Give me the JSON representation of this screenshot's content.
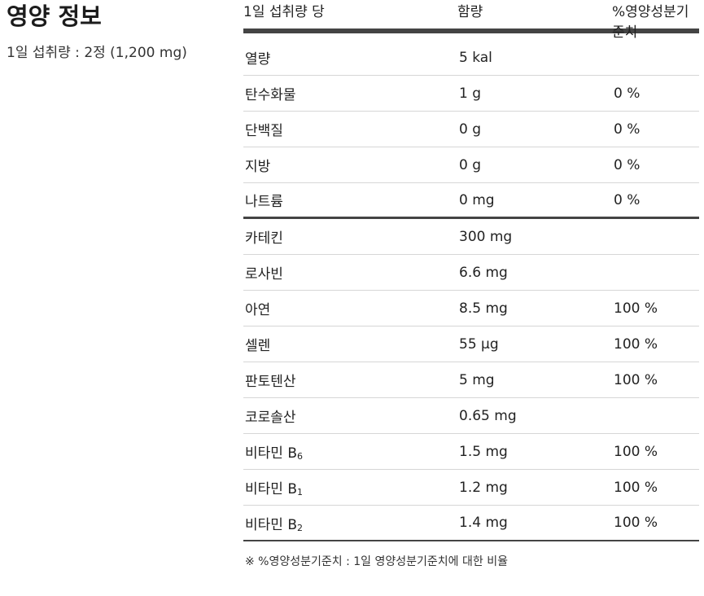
{
  "title": "영양 정보",
  "serving": "1일 섭취량 : 2정 (1,200 mg)",
  "header": {
    "col1": "1일 섭취량 당",
    "col2": "함량",
    "col3": "%영양성분기준치"
  },
  "group1": [
    {
      "name": "열량",
      "amount": "5 kal",
      "dv": ""
    },
    {
      "name": "탄수화물",
      "amount": "1 g",
      "dv": "0 %"
    },
    {
      "name": "단백질",
      "amount": "0 g",
      "dv": "0 %"
    },
    {
      "name": "지방",
      "amount": "0 g",
      "dv": "0 %"
    },
    {
      "name": "나트륨",
      "amount": "0 mg",
      "dv": "0 %"
    }
  ],
  "group2": [
    {
      "name": "카테킨",
      "amount": "300 mg",
      "dv": ""
    },
    {
      "name": "로사빈",
      "amount": "6.6 mg",
      "dv": ""
    },
    {
      "name": "아연",
      "amount": "8.5 mg",
      "dv": "100 %"
    },
    {
      "name": "셀렌",
      "amount": "55 μg",
      "dv": "100 %"
    },
    {
      "name": "판토텐산",
      "amount": "5 mg",
      "dv": "100 %"
    },
    {
      "name": "코로솔산",
      "amount": "0.65 mg",
      "dv": ""
    },
    {
      "name": "비타민 B",
      "sub": "6",
      "amount": "1.5 mg",
      "dv": "100 %"
    },
    {
      "name": "비타민 B",
      "sub": "1",
      "amount": "1.2 mg",
      "dv": "100 %"
    },
    {
      "name": "비타민 B",
      "sub": "2",
      "amount": "1.4 mg",
      "dv": "100 %"
    }
  ],
  "footnote": "※ %영양성분기준치 : 1일 영양성분기준치에 대한 비율"
}
